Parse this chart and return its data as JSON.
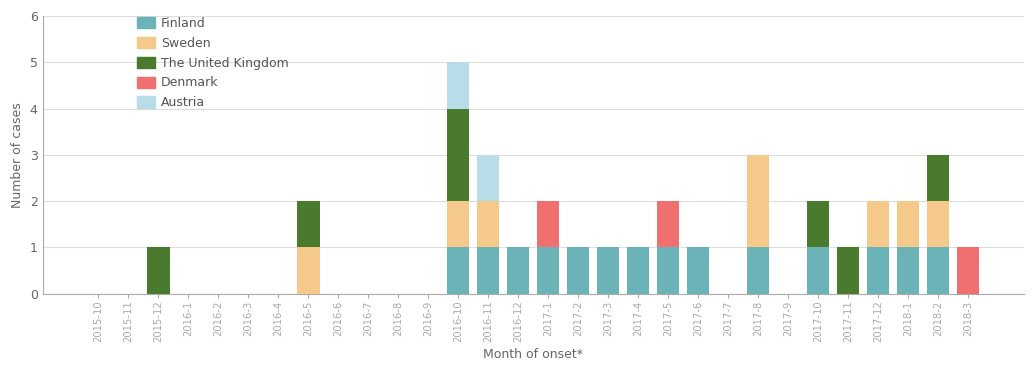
{
  "months": [
    "2015-10",
    "2015-11",
    "2015-12",
    "2016-1",
    "2016-2",
    "2016-3",
    "2016-4",
    "2016-5",
    "2016-6",
    "2016-7",
    "2016-8",
    "2016-9",
    "2016-10",
    "2016-11",
    "2016-12",
    "2017-1",
    "2017-2",
    "2017-3",
    "2017-4",
    "2017-5",
    "2017-6",
    "2017-7",
    "2017-8",
    "2017-9",
    "2017-10",
    "2017-11",
    "2017-12",
    "2018-1",
    "2018-2",
    "2018-3"
  ],
  "series": {
    "Finland": [
      0,
      0,
      0,
      0,
      0,
      0,
      0,
      0,
      0,
      0,
      0,
      0,
      1,
      1,
      1,
      1,
      1,
      1,
      1,
      1,
      1,
      0,
      1,
      0,
      1,
      0,
      1,
      1,
      1,
      0
    ],
    "Sweden": [
      0,
      0,
      0,
      0,
      0,
      0,
      0,
      1,
      0,
      0,
      0,
      0,
      1,
      1,
      0,
      0,
      0,
      0,
      0,
      0,
      0,
      0,
      2,
      0,
      0,
      0,
      1,
      1,
      1,
      0
    ],
    "The United Kingdom": [
      0,
      0,
      1,
      0,
      0,
      0,
      0,
      1,
      0,
      0,
      0,
      0,
      2,
      0,
      0,
      0,
      0,
      0,
      0,
      0,
      0,
      0,
      0,
      0,
      1,
      1,
      0,
      0,
      1,
      0
    ],
    "Denmark": [
      0,
      0,
      0,
      0,
      0,
      0,
      0,
      0,
      0,
      0,
      0,
      0,
      0,
      0,
      0,
      1,
      0,
      0,
      0,
      1,
      0,
      0,
      0,
      0,
      0,
      0,
      0,
      0,
      0,
      1
    ],
    "Austria": [
      0,
      0,
      0,
      0,
      0,
      0,
      0,
      0,
      0,
      0,
      0,
      0,
      1,
      1,
      0,
      0,
      0,
      0,
      0,
      0,
      0,
      0,
      0,
      0,
      0,
      0,
      0,
      0,
      0,
      0
    ]
  },
  "colors": {
    "Finland": "#6cb3b8",
    "Sweden": "#f5c98a",
    "The United Kingdom": "#4a7a2e",
    "Denmark": "#f07070",
    "Austria": "#b8dce8"
  },
  "ylabel": "Number of cases",
  "xlabel": "Month of onset*",
  "ylim": [
    0,
    6
  ],
  "yticks": [
    0,
    1,
    2,
    3,
    4,
    5,
    6
  ],
  "legend_order": [
    "Finland",
    "Sweden",
    "The United Kingdom",
    "Denmark",
    "Austria"
  ]
}
